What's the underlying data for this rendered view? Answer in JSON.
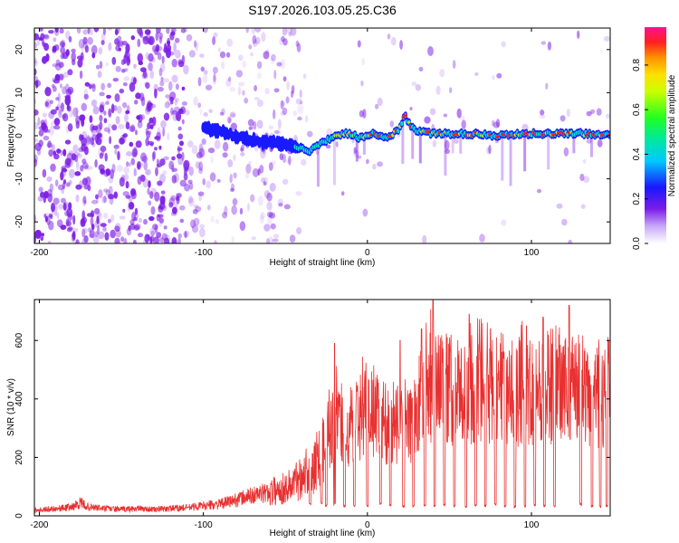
{
  "figure_title": "S197.2026.103.05.25.C36",
  "colors": {
    "spec_dots": "#7c1ce6",
    "ridge_edge": "#1a1aff",
    "ridge_core": "#00e0c0",
    "ridge_hot": "#ff2020",
    "snr_line": "#e83030"
  },
  "chart_data": [
    {
      "type": "heatmap",
      "title": "",
      "xlabel": "Height of straight line (km)",
      "ylabel": "Frequency (Hz)",
      "xlim": [
        -203,
        148
      ],
      "ylim": [
        -25,
        25
      ],
      "xticks": [
        -200,
        -100,
        0,
        100
      ],
      "yticks": [
        -20,
        -10,
        0,
        10,
        20
      ],
      "colorbar": {
        "label": "Normalized spectral amplitude",
        "range": [
          0,
          0.97
        ],
        "ticks": [
          0.0,
          0.2,
          0.4,
          0.6,
          0.8
        ]
      },
      "ridge": {
        "x": [
          -100,
          -90,
          -80,
          -70,
          -60,
          -50,
          -40,
          -35,
          -30,
          -25,
          -20,
          -15,
          -10,
          -5,
          0,
          5,
          10,
          15,
          20,
          23,
          25,
          30,
          40,
          50,
          60,
          70,
          80,
          90,
          100,
          110,
          120,
          130,
          140,
          148
        ],
        "freq": [
          2,
          1,
          0,
          -1,
          -1.5,
          -2,
          -3,
          -3.5,
          -2,
          -1,
          0,
          0.5,
          0.5,
          -0.5,
          0,
          0.5,
          -0.5,
          0,
          2,
          5,
          3,
          1,
          0.5,
          0.5,
          0.5,
          0.3,
          0,
          0.3,
          0.5,
          0.5,
          0.5,
          0.5,
          0.3,
          0.3
        ],
        "amplitude": [
          0.2,
          0.2,
          0.25,
          0.3,
          0.35,
          0.4,
          0.45,
          0.5,
          0.5,
          0.55,
          0.6,
          0.65,
          0.7,
          0.65,
          0.7,
          0.75,
          0.7,
          0.8,
          0.85,
          0.9,
          0.8,
          0.7,
          0.75,
          0.7,
          0.8,
          0.7,
          0.75,
          0.8,
          0.85,
          0.9,
          0.95,
          0.9,
          0.85,
          0.8
        ]
      }
    },
    {
      "type": "line",
      "title": "",
      "xlabel": "Height of straight line (km)",
      "ylabel": "SNR (10 * v/v)",
      "xlim": [
        -203,
        148
      ],
      "ylim": [
        0,
        740
      ],
      "xticks": [
        -200,
        -100,
        0,
        100
      ],
      "yticks": [
        0,
        200,
        400,
        600
      ],
      "series": [
        {
          "name": "SNR",
          "x": [
            -203,
            -190,
            -180,
            -175,
            -170,
            -160,
            -150,
            -140,
            -130,
            -120,
            -110,
            -100,
            -90,
            -80,
            -70,
            -60,
            -50,
            -45,
            -40,
            -35,
            -30,
            -25,
            -22,
            -20,
            -15,
            -10,
            -5,
            0,
            5,
            10,
            15,
            20,
            25,
            30,
            33,
            35,
            40,
            45,
            50,
            55,
            60,
            65,
            70,
            75,
            80,
            85,
            90,
            95,
            100,
            105,
            110,
            115,
            120,
            125,
            130,
            135,
            140,
            145,
            148
          ],
          "y": [
            20,
            25,
            30,
            45,
            30,
            25,
            22,
            25,
            22,
            25,
            28,
            35,
            40,
            55,
            70,
            80,
            95,
            110,
            140,
            170,
            200,
            240,
            300,
            330,
            310,
            300,
            330,
            360,
            340,
            320,
            310,
            300,
            300,
            340,
            420,
            480,
            430,
            450,
            430,
            420,
            420,
            440,
            430,
            420,
            430,
            440,
            420,
            430,
            440,
            430,
            440,
            450,
            440,
            430,
            450,
            380,
            420,
            410,
            480
          ],
          "dips_x": [
            -35,
            -28,
            -25,
            -20,
            -14,
            -8,
            0,
            8,
            14,
            22,
            28,
            35,
            41,
            47,
            53,
            60,
            66,
            72,
            78,
            84,
            90,
            96,
            102,
            108,
            114,
            130,
            137,
            142,
            146
          ],
          "dips_y": [
            35,
            40,
            30,
            35,
            30,
            32,
            30,
            35,
            30,
            28,
            30,
            32,
            30,
            35,
            30,
            28,
            32,
            30,
            35,
            30,
            28,
            30,
            32,
            30,
            28,
            35,
            30,
            28,
            30
          ],
          "peaks_x": [
            -20,
            20,
            33,
            40,
            62,
            75,
            97,
            107,
            123
          ],
          "peaks_y": [
            590,
            600,
            640,
            740,
            690,
            640,
            650,
            680,
            720
          ]
        }
      ]
    }
  ]
}
